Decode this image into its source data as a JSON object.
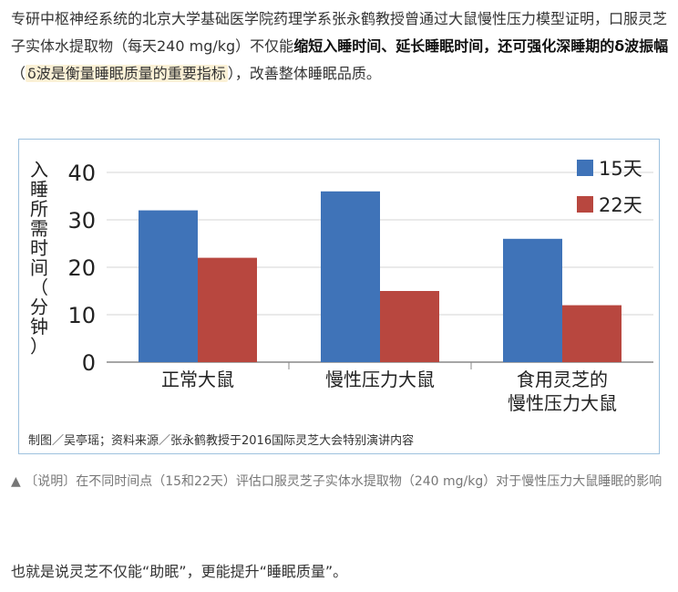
{
  "intro": {
    "part1": "专研中枢神经系统的北京大学基础医学院药理学系张永鹤教授曾通过大鼠慢性压力模型证明，口服灵芝子实体水提取物（每天240 mg/kg）不仅能",
    "bold1": "缩短入睡时间、延长睡眠时间，还可强化深睡期的δ波振幅",
    "paren_open": "（",
    "highlight": "δ波是衡量睡眠质量的重要指标",
    "paren_close": "）",
    "part2": "，改善整体睡眠品质。"
  },
  "chart_data": {
    "type": "bar",
    "categories": [
      "正常大鼠",
      "慢性压力大鼠",
      "食用灵芝的|慢性压力大鼠"
    ],
    "series": [
      {
        "name": "15天",
        "values": [
          32,
          36,
          26
        ],
        "color": "#3f73b8"
      },
      {
        "name": "22天",
        "values": [
          22,
          15,
          12
        ],
        "color": "#b8473f"
      }
    ],
    "ylabel": "入睡所需时间（分钟）",
    "ylim": [
      0,
      40
    ],
    "yticks": [
      0,
      10,
      20,
      30,
      40
    ],
    "grid": true,
    "legend_position": "top-right"
  },
  "credit": "制图／吴亭瑶；资料来源／张永鹤教授于2016国际灵芝大会特别演讲内容",
  "caption": "▲ 〔说明〕在不同时间点（15和22天）评估口服灵芝子实体水提取物（240 mg/kg）对于慢性压力大鼠睡眠的影响",
  "outro": "也就是说灵芝不仅能“助眠”，更能提升“睡眠质量”。"
}
